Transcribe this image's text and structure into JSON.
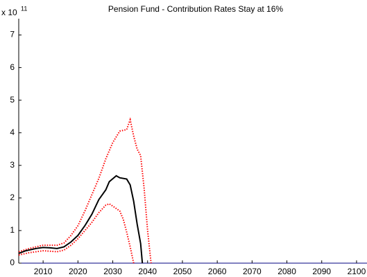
{
  "chart_data": {
    "type": "line",
    "title": "Pension Fund - Contribution Rates Stay at 16%",
    "y_scale_base": "x 10",
    "y_scale_exponent": "11",
    "xlim": [
      2003,
      2103
    ],
    "xticks": [
      2010,
      2020,
      2030,
      2040,
      2050,
      2060,
      2070,
      2080,
      2090,
      2100
    ],
    "ylim": [
      0,
      7.5
    ],
    "yticks": [
      0,
      1,
      2,
      3,
      4,
      5,
      6,
      7
    ],
    "series": [
      {
        "color": "#ff0000",
        "dash": "dotted",
        "x": [
          2003,
          2006,
          2010,
          2014,
          2016,
          2018,
          2020,
          2022,
          2024,
          2026,
          2028,
          2030,
          2032,
          2034,
          2035,
          2036,
          2037,
          2038,
          2039,
          2040,
          2041
        ],
        "values": [
          0.35,
          0.45,
          0.55,
          0.55,
          0.62,
          0.85,
          1.15,
          1.6,
          2.1,
          2.6,
          3.2,
          3.7,
          4.05,
          4.1,
          4.4,
          3.9,
          3.5,
          3.3,
          2.3,
          1.0,
          0
        ]
      },
      {
        "color": "#ff0000",
        "dash": "dotted",
        "x": [
          2003,
          2006,
          2010,
          2014,
          2016,
          2018,
          2020,
          2022,
          2024,
          2026,
          2028,
          2029,
          2030,
          2032,
          2033,
          2034,
          2035,
          2036
        ],
        "values": [
          0.25,
          0.32,
          0.38,
          0.35,
          0.4,
          0.55,
          0.75,
          1.0,
          1.25,
          1.55,
          1.78,
          1.82,
          1.75,
          1.6,
          1.35,
          0.95,
          0.5,
          0
        ]
      },
      {
        "color": "#000000",
        "dash": "solid",
        "x": [
          2003,
          2005,
          2008,
          2010,
          2012,
          2014,
          2016,
          2018,
          2020,
          2022,
          2024,
          2026,
          2028,
          2029,
          2031,
          2032,
          2034,
          2035,
          2036,
          2037,
          2038,
          2038.5
        ],
        "values": [
          0.3,
          0.38,
          0.45,
          0.48,
          0.47,
          0.45,
          0.5,
          0.65,
          0.85,
          1.15,
          1.5,
          1.95,
          2.25,
          2.5,
          2.68,
          2.62,
          2.58,
          2.4,
          1.9,
          1.2,
          0.6,
          0
        ]
      }
    ]
  }
}
